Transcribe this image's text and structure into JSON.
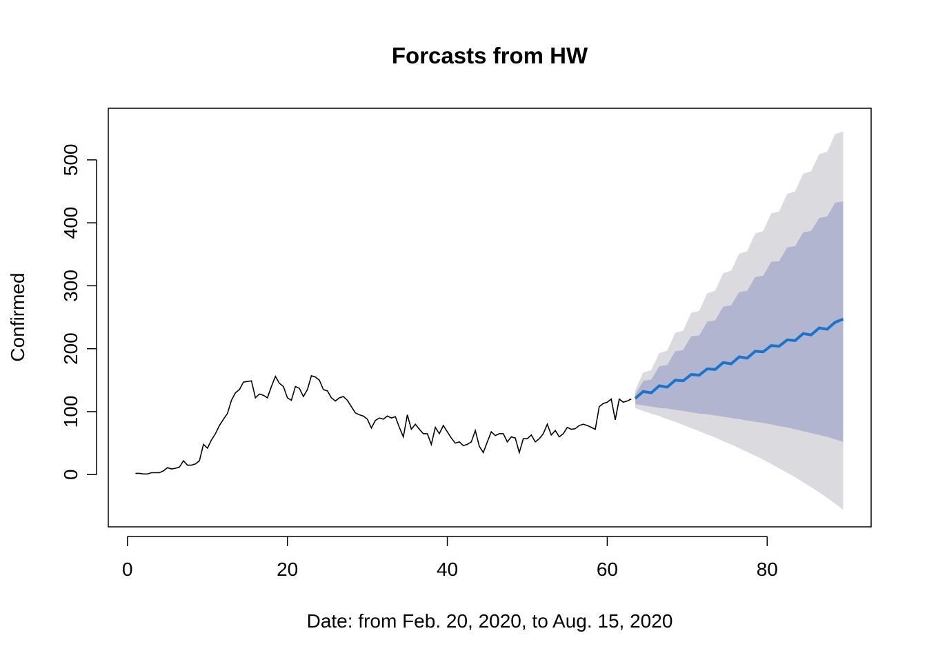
{
  "chart_data": {
    "type": "forecast",
    "title": "Forcasts from HW",
    "xlabel": "Date: from Feb. 20, 2020, to Aug. 15, 2020",
    "ylabel": "Confirmed",
    "xlim": [
      -2.4,
      93
    ],
    "ylim": [
      -83,
      582
    ],
    "xticks": [
      0,
      20,
      40,
      60,
      80
    ],
    "yticks": [
      0,
      100,
      200,
      300,
      400,
      500
    ],
    "observed": {
      "color": "#000000",
      "x": [
        1,
        1.5,
        2,
        2.5,
        3,
        3.5,
        4,
        4.5,
        5,
        5.5,
        6,
        6.5,
        7,
        7.5,
        8,
        8.5,
        9,
        9.5,
        10,
        10.5,
        11,
        11.5,
        12,
        12.5,
        13,
        13.5,
        14,
        14.5,
        15,
        15.5,
        16,
        16.5,
        17,
        17.5,
        18,
        18.5,
        19,
        19.5,
        20,
        20.5,
        21,
        21.5,
        22,
        22.5,
        23,
        23.5,
        24,
        24.5,
        25,
        25.5,
        26,
        26.5,
        27,
        27.5,
        28,
        28.5,
        29,
        29.5,
        30,
        30.5,
        31,
        31.5,
        32,
        32.5,
        33,
        33.5,
        34,
        34.5,
        35,
        35.5,
        36,
        36.5,
        37,
        37.5,
        38,
        38.5,
        39,
        39.5,
        40,
        40.5,
        41,
        41.5,
        42,
        42.5,
        43,
        43.5,
        44,
        44.5,
        45,
        45.5,
        46,
        46.5,
        47,
        47.5,
        48,
        48.5,
        49,
        49.5,
        50,
        50.5,
        51,
        51.5,
        52,
        52.5,
        53,
        53.5,
        54,
        54.5,
        55,
        55.5,
        56,
        56.5,
        57,
        57.5,
        58,
        58.5,
        59,
        59.5,
        60,
        60.5,
        61,
        61.5,
        62,
        62.5,
        63
      ],
      "values": [
        2,
        2,
        1,
        1,
        3,
        3,
        3,
        6,
        11,
        9,
        10,
        12,
        22,
        15,
        15,
        17,
        22,
        48,
        42,
        55,
        65,
        78,
        88,
        97,
        118,
        130,
        135,
        147,
        148,
        149,
        122,
        128,
        126,
        122,
        140,
        156,
        145,
        140,
        122,
        118,
        140,
        137,
        124,
        135,
        157,
        155,
        150,
        135,
        133,
        122,
        117,
        122,
        124,
        118,
        108,
        98,
        95,
        93,
        88,
        74,
        86,
        90,
        88,
        93,
        90,
        92,
        75,
        60,
        95,
        72,
        80,
        72,
        65,
        65,
        48,
        75,
        65,
        78,
        68,
        58,
        50,
        52,
        46,
        48,
        52,
        70,
        45,
        35,
        52,
        68,
        62,
        65,
        65,
        52,
        60,
        58,
        35,
        57,
        57,
        63,
        52,
        57,
        65,
        80,
        63,
        70,
        60,
        65,
        75,
        72,
        73,
        78,
        80,
        78,
        75,
        72,
        108,
        113,
        115,
        120,
        87,
        120,
        115,
        117,
        120
      ]
    },
    "forecast": {
      "color": "#1874cd",
      "color80": "#b1b5cf",
      "color95": "#dadadf",
      "x": [
        63.5,
        64.5,
        65.5,
        66.5,
        67.5,
        68.5,
        69.5,
        70.5,
        71.5,
        72.5,
        73.5,
        74.5,
        75.5,
        76.5,
        77.5,
        78.5,
        79.5,
        80.5,
        81.5,
        82.5,
        83.5,
        84.5,
        85.5,
        86.5,
        87.5,
        88.5,
        89.5
      ],
      "mean": [
        121,
        132,
        130,
        141,
        139,
        150,
        149,
        159,
        158,
        168,
        167,
        178,
        176,
        187,
        185,
        196,
        195,
        205,
        204,
        214,
        213,
        224,
        222,
        233,
        231,
        242,
        247
      ],
      "lower80": [
        112,
        110,
        108,
        106,
        105,
        103,
        101,
        99,
        97,
        96,
        94,
        92,
        90,
        88,
        86,
        84,
        82,
        80,
        77,
        75,
        72,
        69,
        66,
        63,
        60,
        56,
        52
      ],
      "upper80": [
        127,
        149,
        151,
        172,
        174,
        196,
        198,
        220,
        221,
        243,
        245,
        267,
        269,
        290,
        292,
        314,
        316,
        338,
        339,
        361,
        363,
        385,
        387,
        408,
        410,
        432,
        434
      ],
      "lower95": [
        106,
        101,
        97,
        93,
        88,
        84,
        79,
        74,
        69,
        64,
        59,
        53,
        48,
        42,
        36,
        30,
        24,
        17,
        10,
        3,
        -4,
        -12,
        -20,
        -28,
        -37,
        -46,
        -56
      ],
      "upper95": [
        134,
        162,
        166,
        193,
        197,
        225,
        229,
        257,
        260,
        288,
        292,
        320,
        324,
        351,
        355,
        383,
        387,
        415,
        418,
        446,
        450,
        478,
        482,
        509,
        513,
        541,
        545
      ]
    }
  }
}
